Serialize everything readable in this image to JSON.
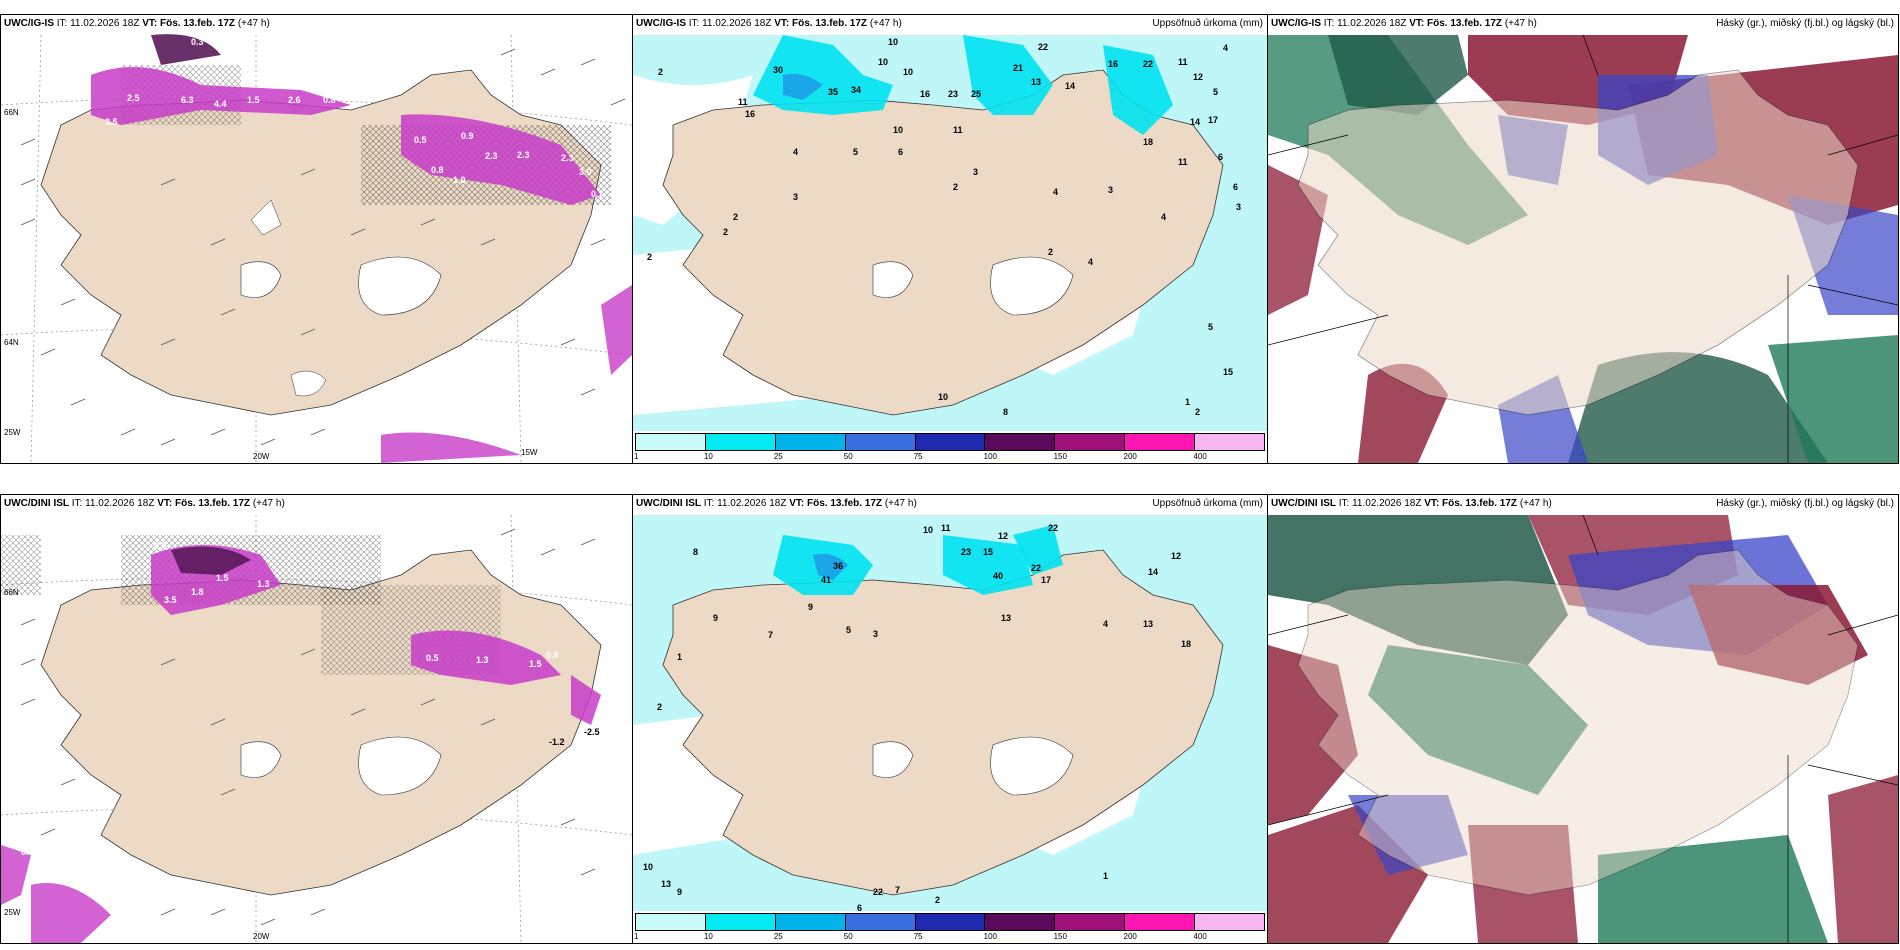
{
  "rows": [
    {
      "model": "UWC/IG-IS",
      "it": "IT: 11.02.2026 18Z",
      "vt_label": "VT:",
      "vt": "Fös. 13.feb. 17Z",
      "lead": "(+47 h)"
    },
    {
      "model": "UWC/DINI ISL",
      "it": "IT: 11.02.2026 18Z",
      "vt_label": "VT:",
      "vt": "Fös. 13.feb. 17Z",
      "lead": "(+47 h)"
    }
  ],
  "precip_title": "Uppsöfnuð úrkoma (mm)",
  "cloud_title": "Háský (gr.), miðský (fj.bl.) og lágský (bl.)",
  "colorbar": {
    "ticks": [
      "1",
      "10",
      "25",
      "50",
      "75",
      "100",
      "150",
      "200",
      "400"
    ],
    "colors": [
      "#c9fafa",
      "#00eaf2",
      "#00b4ea",
      "#3a6fe0",
      "#1f2ab0",
      "#5a0a5a",
      "#a0107a",
      "#ff16b0",
      "#f6b6f0"
    ]
  },
  "axis_labels": {
    "lon_20w": "20W",
    "lon_15w": "15W",
    "lon_25w": "25W",
    "lat_66n": "66N",
    "lat_64n": "64N"
  },
  "wind_panel_top_values": [
    "0.3",
    "2.5",
    "3.5",
    "6.3",
    "4.4",
    "1.5",
    "2.6",
    "0.8",
    "0.5",
    "0.9",
    "2.3",
    "2.3",
    "2.3",
    "3.0",
    "0.7",
    "1.0",
    "0.8"
  ],
  "wind_panel_bottom_values": [
    "0.5",
    "1.5",
    "3.5",
    "1.8",
    "1.3",
    "0.5",
    "1.3",
    "1.5",
    "0.9",
    "-1.2",
    "-2.5",
    "0.8"
  ],
  "precip_top_values": [
    "10",
    "10",
    "10",
    "2",
    "11",
    "16",
    "30",
    "35",
    "34",
    "16",
    "23",
    "25",
    "21",
    "13",
    "22",
    "14",
    "16",
    "22",
    "11",
    "12",
    "4",
    "5",
    "10",
    "11",
    "5",
    "4",
    "3",
    "2",
    "6",
    "3",
    "4",
    "4",
    "2",
    "3",
    "2",
    "2",
    "2",
    "10",
    "8",
    "15",
    "5",
    "1",
    "2",
    "17",
    "14",
    "18",
    "11",
    "6",
    "3",
    "4",
    "6"
  ],
  "precip_bottom_values": [
    "10",
    "11",
    "22",
    "23",
    "15",
    "12",
    "36",
    "41",
    "40",
    "22",
    "17",
    "14",
    "12",
    "13",
    "8",
    "9",
    "1",
    "2",
    "9",
    "7",
    "5",
    "3",
    "4",
    "13",
    "18",
    "10",
    "13",
    "9",
    "22",
    "7",
    "6",
    "2",
    "1"
  ],
  "colors": {
    "land": "#ecd9c6",
    "sea_precip": "#bff6f8",
    "deep_precip": "#00e2ef",
    "precip_blue": "#1aa6e8",
    "magenta": "#c83cc8",
    "dark_purple": "#5a1a5a",
    "cloud_red": "#8b1a35",
    "cloud_green": "#1f7a5a",
    "cloud_blue": "#3a46c8"
  }
}
